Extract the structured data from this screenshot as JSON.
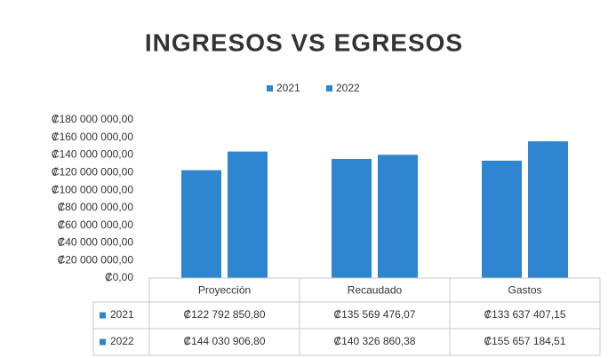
{
  "chart_data": {
    "type": "bar",
    "title": "INGRESOS VS EGRESOS",
    "categories": [
      "Proyección",
      "Recaudado",
      "Gastos"
    ],
    "series": [
      {
        "name": "2021",
        "color": "#2e86d1",
        "values": [
          122792850.8,
          135569476.07,
          133637407.15
        ],
        "value_labels": [
          "₡122 792 850,80",
          "₡135 569 476,07",
          "₡133 637 407,15"
        ]
      },
      {
        "name": "2022",
        "color": "#2e86d1",
        "values": [
          144030906.8,
          140326860.38,
          155657184.51
        ],
        "value_labels": [
          "₡144 030 906,80",
          "₡140 326 860,38",
          "₡155 657 184,51"
        ]
      }
    ],
    "ylim": [
      0,
      180000000
    ],
    "yticks": [
      {
        "value": 0,
        "label": "₡0,00"
      },
      {
        "value": 20000000,
        "label": "₡20 000 000,00"
      },
      {
        "value": 40000000,
        "label": "₡40 000 000,00"
      },
      {
        "value": 60000000,
        "label": "₡60 000 000,00"
      },
      {
        "value": 80000000,
        "label": "₡80 000 000,00"
      },
      {
        "value": 100000000,
        "label": "₡100 000 000,00"
      },
      {
        "value": 120000000,
        "label": "₡120 000 000,00"
      },
      {
        "value": 140000000,
        "label": "₡140 000 000,00"
      },
      {
        "value": 160000000,
        "label": "₡160 000 000,00"
      },
      {
        "value": 180000000,
        "label": "₡180 000 000,00"
      }
    ],
    "legend": "top"
  }
}
